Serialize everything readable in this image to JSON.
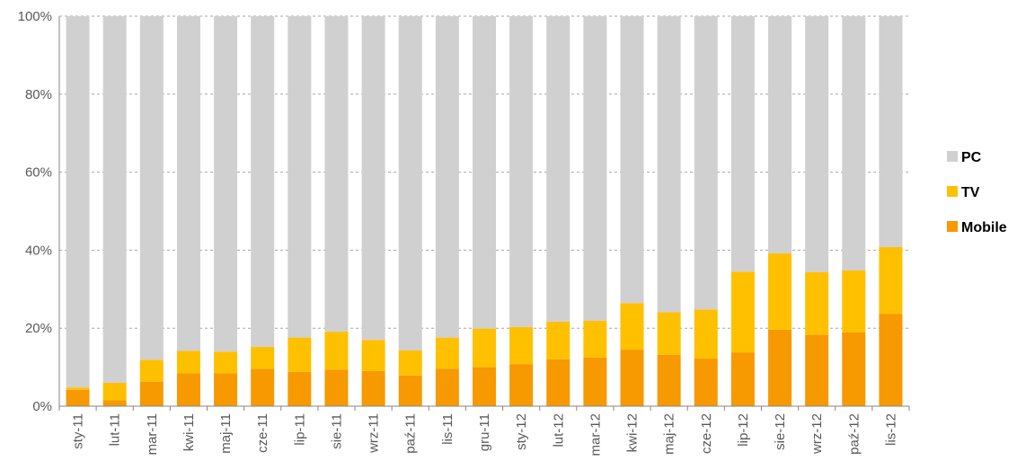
{
  "chart_data": {
    "type": "bar",
    "stacked": true,
    "percent_stacked": true,
    "categories": [
      "sty-11",
      "lut-11",
      "mar-11",
      "kwi-11",
      "maj-11",
      "cze-11",
      "lip-11",
      "sie-11",
      "wrz-11",
      "paź-11",
      "lis-11",
      "gru-11",
      "sty-12",
      "lut-12",
      "mar-12",
      "kwi-12",
      "maj-12",
      "cze-12",
      "lip-12",
      "sie-12",
      "wrz-12",
      "paź-12",
      "lis-12"
    ],
    "series": [
      {
        "name": "Mobile",
        "color": "#F79900",
        "values": [
          4.2,
          1.5,
          6.3,
          8.4,
          8.4,
          9.6,
          8.8,
          9.4,
          9.0,
          7.9,
          9.6,
          10.0,
          10.8,
          12.0,
          12.5,
          14.5,
          13.2,
          12.2,
          13.8,
          19.6,
          18.3,
          18.9,
          23.7
        ]
      },
      {
        "name": "TV",
        "color": "#FFC000",
        "values": [
          0.6,
          4.5,
          5.6,
          5.8,
          5.6,
          5.6,
          8.8,
          9.7,
          8.0,
          6.4,
          8.0,
          9.9,
          9.5,
          9.7,
          9.4,
          11.9,
          10.9,
          12.6,
          20.7,
          19.6,
          16.1,
          15.9,
          17.1
        ]
      },
      {
        "name": "PC",
        "color": "#D0D0D0",
        "values": [
          95.2,
          94.0,
          88.1,
          85.8,
          86.0,
          84.8,
          82.4,
          80.9,
          83.0,
          85.7,
          82.4,
          80.1,
          79.7,
          78.3,
          78.1,
          73.6,
          75.9,
          75.2,
          65.5,
          60.8,
          65.6,
          65.2,
          59.2
        ]
      }
    ],
    "legend_order": [
      "PC",
      "TV",
      "Mobile"
    ],
    "legend_position": "right",
    "y_ticks": [
      "0%",
      "20%",
      "40%",
      "60%",
      "80%",
      "100%"
    ],
    "ylim": [
      0,
      100
    ],
    "grid": true,
    "title": "",
    "xlabel": "",
    "ylabel": ""
  }
}
